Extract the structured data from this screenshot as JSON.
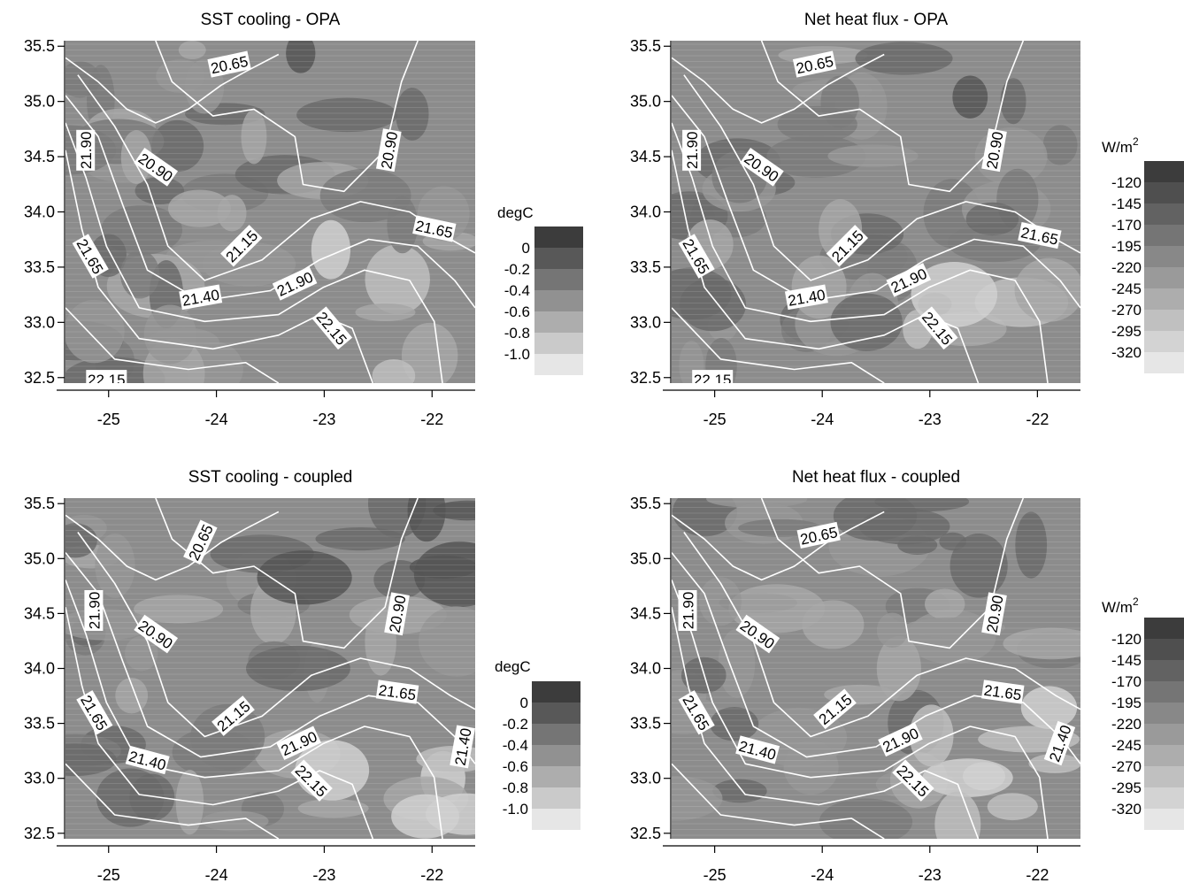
{
  "chart_data": [
    {
      "type": "heatmap",
      "title": "SST cooling - OPA",
      "x_ticks": [
        "-25",
        "-24",
        "-23",
        "-22"
      ],
      "y_ticks": [
        "32.5",
        "33.0",
        "33.5",
        "34.0",
        "34.5",
        "35.0",
        "35.5"
      ],
      "xlim": [
        -25.4,
        -21.6
      ],
      "ylim": [
        32.45,
        35.55
      ],
      "colorbar": {
        "label": "degC",
        "ticks": [
          "0",
          "-0.2",
          "-0.4",
          "-0.6",
          "-0.8",
          "-1.0"
        ],
        "levels": [
          0.1,
          -0.1,
          -0.3,
          -0.5,
          -0.7,
          -0.9,
          -1.1
        ]
      },
      "contour_labels": [
        "20.65",
        "20.90",
        "20.90",
        "21.15",
        "21.40",
        "21.65",
        "21.65",
        "21.90",
        "21.90",
        "22.15",
        "22.15"
      ]
    },
    {
      "type": "heatmap",
      "title": "Net heat flux - OPA",
      "x_ticks": [
        "-25",
        "-24",
        "-23",
        "-22"
      ],
      "y_ticks": [
        "32.5",
        "33.0",
        "33.5",
        "34.0",
        "34.5",
        "35.0",
        "35.5"
      ],
      "xlim": [
        -25.4,
        -21.6
      ],
      "ylim": [
        32.45,
        35.55
      ],
      "colorbar": {
        "label": "W/m",
        "label_superscript": "2",
        "ticks": [
          "-120",
          "-145",
          "-170",
          "-195",
          "-220",
          "-245",
          "-270",
          "-295",
          "-320"
        ],
        "levels": [
          -107,
          -132,
          -157,
          -182,
          -207,
          -232,
          -257,
          -282,
          -307,
          -332
        ]
      },
      "contour_labels": [
        "20.65",
        "20.90",
        "20.90",
        "21.15",
        "21.40",
        "21.65",
        "21.65",
        "21.90",
        "21.90",
        "22.15",
        "22.15"
      ]
    },
    {
      "type": "heatmap",
      "title": "SST cooling - coupled",
      "x_ticks": [
        "-25",
        "-24",
        "-23",
        "-22"
      ],
      "y_ticks": [
        "32.5",
        "33.0",
        "33.5",
        "34.0",
        "34.5",
        "35.0",
        "35.5"
      ],
      "xlim": [
        -25.4,
        -21.6
      ],
      "ylim": [
        32.45,
        35.55
      ],
      "colorbar": {
        "label": "degC",
        "ticks": [
          "0",
          "-0.2",
          "-0.4",
          "-0.6",
          "-0.8",
          "-1.0"
        ],
        "levels": [
          0.1,
          -0.1,
          -0.3,
          -0.5,
          -0.7,
          -0.9,
          -1.1
        ]
      },
      "contour_labels": [
        "20.65",
        "20.90",
        "20.90",
        "21.15",
        "21.40",
        "21.40",
        "21.65",
        "21.65",
        "21.90",
        "21.90",
        "22.15"
      ]
    },
    {
      "type": "heatmap",
      "title": "Net heat flux - coupled",
      "x_ticks": [
        "-25",
        "-24",
        "-23",
        "-22"
      ],
      "y_ticks": [
        "32.5",
        "33.0",
        "33.5",
        "34.0",
        "34.5",
        "35.0",
        "35.5"
      ],
      "xlim": [
        -25.4,
        -21.6
      ],
      "ylim": [
        32.45,
        35.55
      ],
      "colorbar": {
        "label": "W/m",
        "label_superscript": "2",
        "ticks": [
          "-120",
          "-145",
          "-170",
          "-195",
          "-220",
          "-245",
          "-270",
          "-295",
          "-320"
        ],
        "levels": [
          -107,
          -132,
          -157,
          -182,
          -207,
          -232,
          -257,
          -282,
          -307,
          -332
        ]
      },
      "contour_labels": [
        "20.65",
        "20.90",
        "20.90",
        "21.15",
        "21.40",
        "21.40",
        "21.65",
        "21.65",
        "21.90",
        "21.90",
        "22.15"
      ]
    }
  ]
}
